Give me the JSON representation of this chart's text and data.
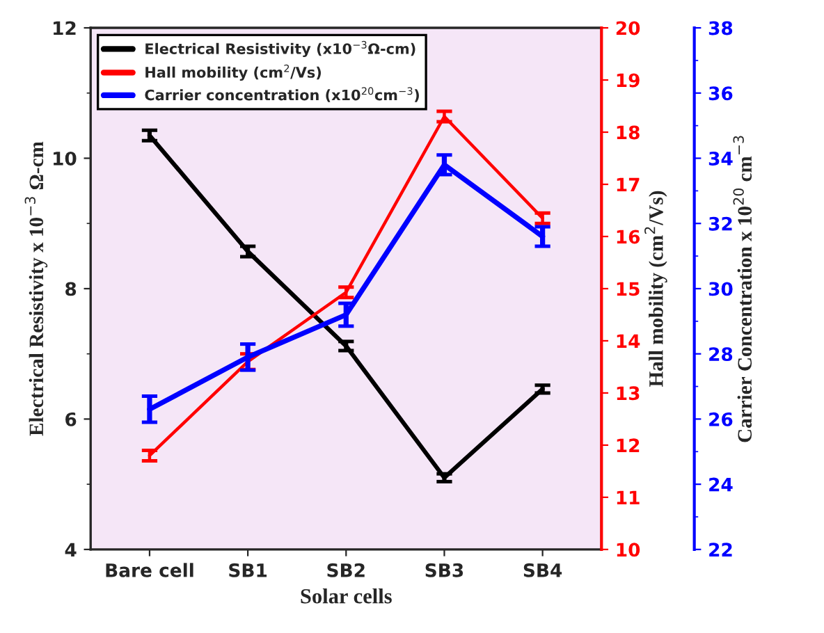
{
  "chart_data": {
    "type": "line",
    "xlabel": "Solar cells",
    "ylabel": "Electrical Resistivity x 10$^{−3}$ Ω-cm",
    "y2label": "Hall mobility (cm$^{2}$/Vs)",
    "y3label": "Carrier Concentration x 10$^{20}$ cm$^{−3}$",
    "categories": [
      "Bare cell",
      "SB1",
      "SB2",
      "SB3",
      "SB4"
    ],
    "ylim": [
      4,
      12
    ],
    "yticks": [
      4,
      6,
      8,
      10,
      12
    ],
    "y2lim": [
      10,
      20
    ],
    "y2ticks": [
      10,
      11,
      12,
      13,
      14,
      15,
      16,
      17,
      18,
      19,
      20
    ],
    "y3lim": [
      22,
      38
    ],
    "y3ticks": [
      22,
      24,
      26,
      28,
      30,
      32,
      34,
      36,
      38
    ],
    "series": [
      {
        "name": "Electrical Resistivity (x10$^{−3}$Ω-cm)",
        "color": "#000000",
        "axis": "y",
        "values": [
          10.35,
          8.57,
          7.12,
          5.1,
          6.46
        ],
        "errors": [
          0.08,
          0.08,
          0.07,
          0.06,
          0.06
        ]
      },
      {
        "name": "Hall mobility (cm$^{2}$/Vs)",
        "color": "#ff0000",
        "axis": "y2",
        "values": [
          11.8,
          13.6,
          14.93,
          18.3,
          16.35
        ],
        "errors": [
          0.1,
          0.15,
          0.1,
          0.1,
          0.1
        ]
      },
      {
        "name": "Carrier concentration (x10$^{20}$cm$^{−3}$)",
        "color": "#0000ff",
        "axis": "y3",
        "values": [
          26.3,
          27.9,
          29.2,
          33.8,
          31.6
        ],
        "errors": [
          0.4,
          0.4,
          0.35,
          0.3,
          0.3
        ]
      }
    ],
    "legend": "top left",
    "grid": false,
    "marker": "none",
    "line_style": "solid"
  }
}
